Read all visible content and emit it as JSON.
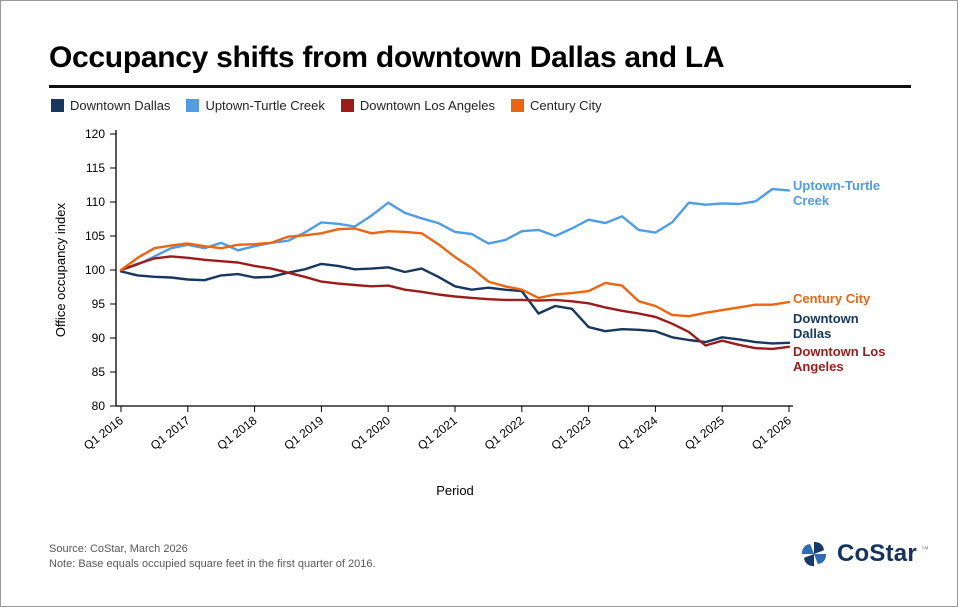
{
  "title": "Occupancy shifts from downtown Dallas and LA",
  "chart_data": {
    "type": "line",
    "title": "Occupancy shifts from downtown Dallas and LA",
    "x_label": "Period",
    "y_label": "Office occupancy index",
    "ylim": [
      80,
      120
    ],
    "y_ticks": [
      80,
      85,
      90,
      95,
      100,
      105,
      110,
      115,
      120
    ],
    "x_tick_labels": [
      "Q1 2016",
      "Q1 2017",
      "Q1 2018",
      "Q1 2019",
      "Q1 2020",
      "Q1 2021",
      "Q1 2022",
      "Q1 2023",
      "Q1 2024",
      "Q1 2025",
      "Q1 2026"
    ],
    "x_frequency": "quarterly",
    "grid": false,
    "legend_position": "top",
    "series": [
      {
        "name": "Downtown Dallas",
        "color": "#17375e",
        "values": [
          99.8,
          99.2,
          99.0,
          98.9,
          98.6,
          98.5,
          99.2,
          99.4,
          98.9,
          99.0,
          99.6,
          100.1,
          100.9,
          100.6,
          100.1,
          100.2,
          100.4,
          99.7,
          100.2,
          99.0,
          97.6,
          97.1,
          97.4,
          97.1,
          96.9,
          93.6,
          94.7,
          94.3,
          91.6,
          91.0,
          91.3,
          91.2,
          91.0,
          90.1,
          89.7,
          89.4,
          90.1,
          89.8,
          89.4,
          89.2,
          89.3
        ]
      },
      {
        "name": "Uptown-Turtle Creek",
        "color": "#4f9de6",
        "values": [
          100.0,
          100.8,
          102.0,
          103.2,
          103.7,
          103.2,
          104.0,
          102.9,
          103.5,
          104.0,
          104.3,
          105.5,
          107.0,
          106.8,
          106.4,
          108.0,
          109.9,
          108.4,
          107.6,
          106.9,
          105.6,
          105.3,
          103.9,
          104.4,
          105.7,
          105.9,
          105.0,
          106.1,
          107.4,
          106.9,
          107.9,
          105.9,
          105.5,
          107.0,
          109.9,
          109.6,
          109.8,
          109.7,
          110.1,
          111.9,
          111.7
        ]
      },
      {
        "name": "Downtown Los Angeles",
        "color": "#9c1c1c",
        "values": [
          100.0,
          100.9,
          101.7,
          102.0,
          101.8,
          101.5,
          101.3,
          101.1,
          100.6,
          100.2,
          99.6,
          99.0,
          98.3,
          98.0,
          97.8,
          97.6,
          97.7,
          97.1,
          96.8,
          96.4,
          96.1,
          95.9,
          95.7,
          95.6,
          95.6,
          95.5,
          95.6,
          95.4,
          95.1,
          94.5,
          94.0,
          93.6,
          93.1,
          92.1,
          90.9,
          88.9,
          89.6,
          89.0,
          88.5,
          88.4,
          88.7
        ]
      },
      {
        "name": "Century City",
        "color": "#ee6511",
        "values": [
          100.0,
          101.8,
          103.2,
          103.6,
          103.9,
          103.5,
          103.2,
          103.7,
          103.8,
          104.0,
          104.9,
          105.1,
          105.4,
          106.0,
          106.1,
          105.4,
          105.7,
          105.6,
          105.4,
          103.8,
          101.9,
          100.3,
          98.3,
          97.6,
          97.1,
          95.9,
          96.4,
          96.6,
          96.9,
          98.1,
          97.7,
          95.4,
          94.7,
          93.4,
          93.2,
          93.7,
          94.1,
          94.5,
          94.9,
          94.9,
          95.3
        ]
      }
    ]
  },
  "footer": {
    "source": "Source: CoStar, March 2026",
    "note": "Note: Base equals occupied square feet in the first quarter of 2016."
  },
  "logo": {
    "text": "CoStar",
    "tm": "™"
  }
}
